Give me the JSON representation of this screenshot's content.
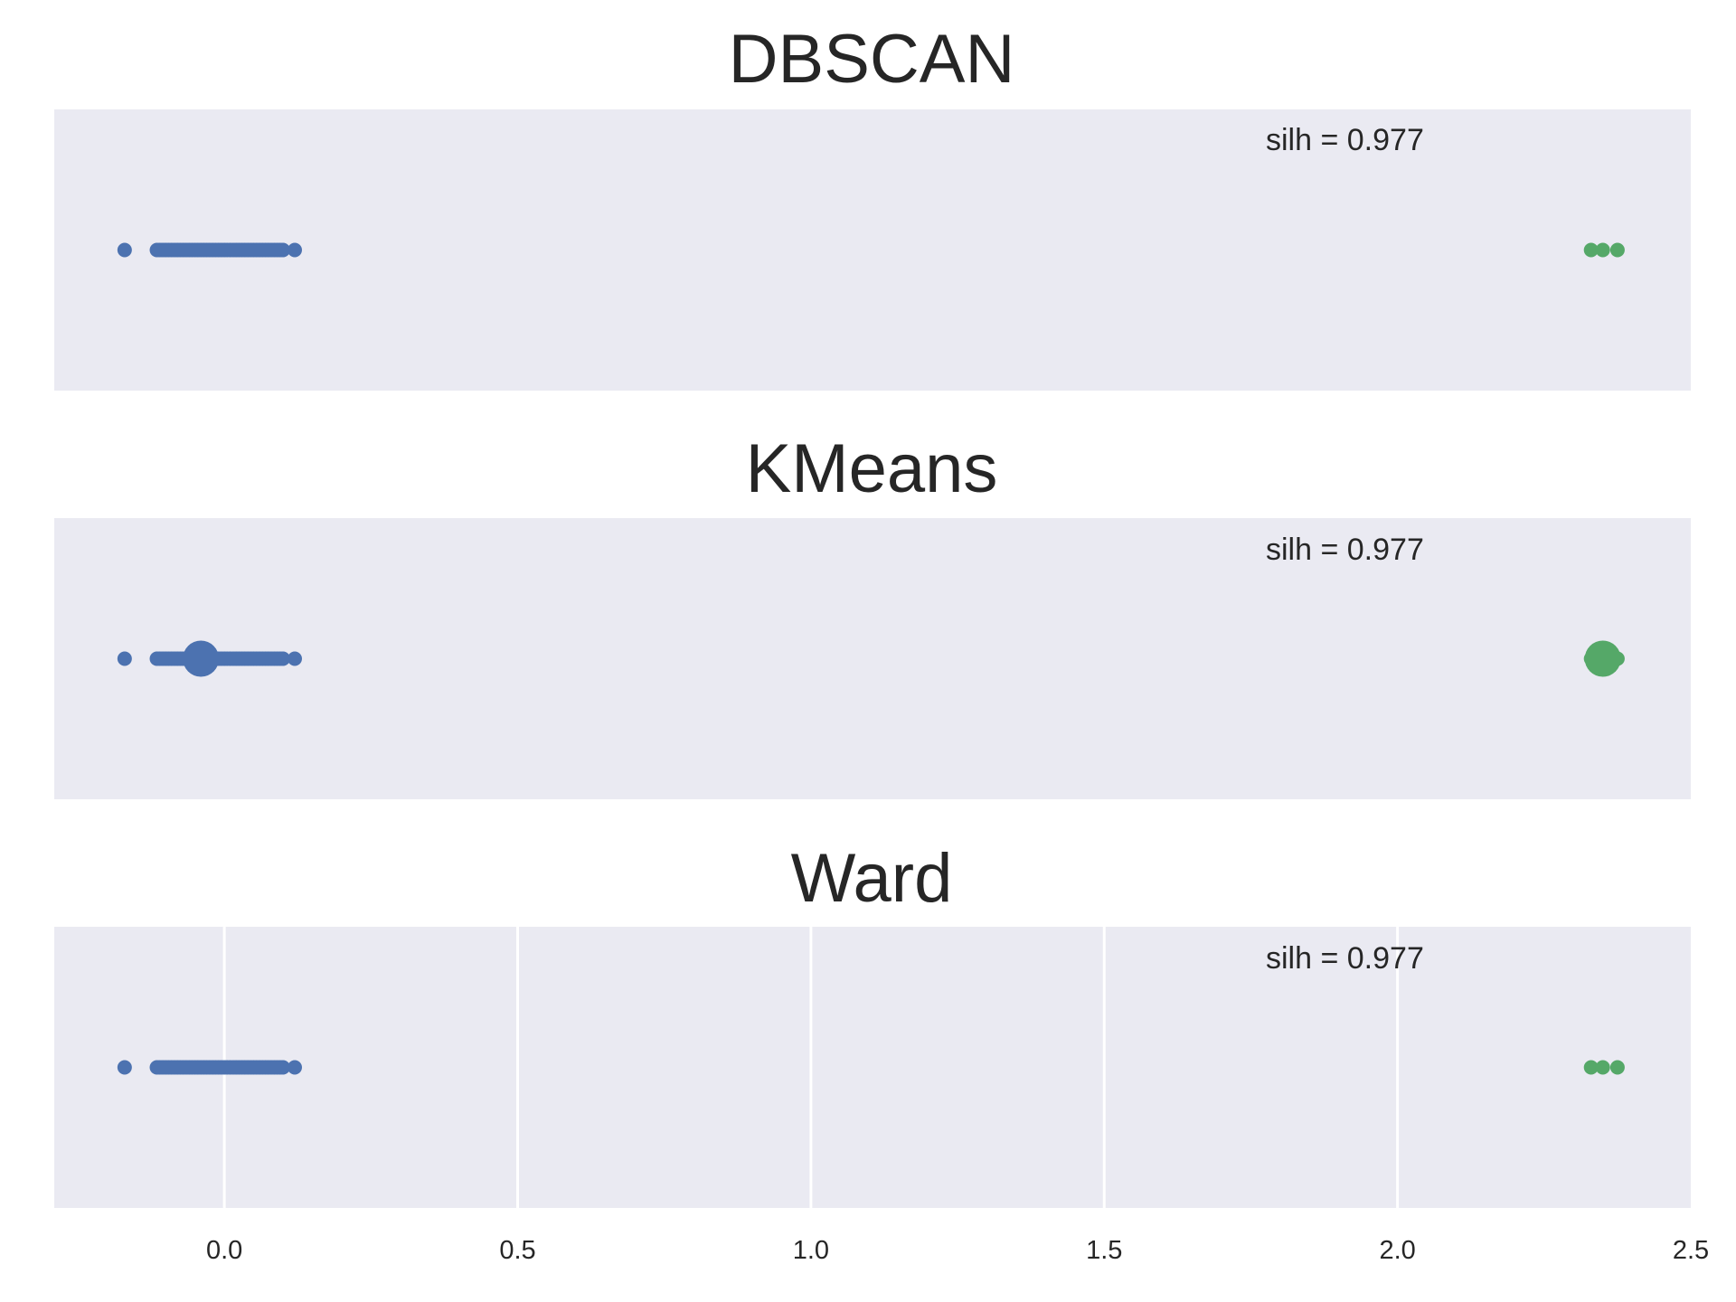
{
  "figure": {
    "background": "#ffffff",
    "axes_facecolor": "#eaeaf2",
    "grid_color": "#ffffff",
    "text_color": "#262626"
  },
  "chart_data": [
    {
      "type": "scatter",
      "title": "DBSCAN",
      "annotation": "silh = 0.977",
      "xlim": [
        -0.29,
        2.5
      ],
      "ylim": [
        -1,
        1
      ],
      "grid": false,
      "show_xticks": false,
      "series": [
        {
          "color": "#4c72b0",
          "size": 8,
          "x": [
            -0.17,
            -0.115,
            -0.11,
            -0.105,
            -0.1,
            -0.095,
            -0.09,
            -0.085,
            -0.08,
            -0.075,
            -0.07,
            -0.065,
            -0.06,
            -0.055,
            -0.05,
            -0.045,
            -0.04,
            -0.035,
            -0.03,
            -0.025,
            -0.02,
            -0.015,
            -0.01,
            -0.005,
            0.0,
            0.005,
            0.01,
            0.015,
            0.02,
            0.025,
            0.03,
            0.035,
            0.04,
            0.045,
            0.05,
            0.055,
            0.06,
            0.065,
            0.07,
            0.075,
            0.08,
            0.085,
            0.09,
            0.095,
            0.1,
            0.12
          ]
        },
        {
          "color": "#55a868",
          "size": 8,
          "x": [
            2.33,
            2.35,
            2.375
          ]
        }
      ]
    },
    {
      "type": "scatter",
      "title": "KMeans",
      "annotation": "silh = 0.977",
      "xlim": [
        -0.29,
        2.5
      ],
      "ylim": [
        -1,
        1
      ],
      "grid": false,
      "show_xticks": false,
      "series": [
        {
          "color": "#4c72b0",
          "size": 8,
          "x": [
            -0.17,
            -0.115,
            -0.11,
            -0.105,
            -0.1,
            -0.095,
            -0.09,
            -0.085,
            -0.08,
            -0.075,
            -0.07,
            -0.065,
            -0.06,
            -0.055,
            -0.05,
            -0.045,
            -0.04,
            -0.035,
            -0.03,
            -0.025,
            -0.02,
            -0.015,
            -0.01,
            -0.005,
            0.0,
            0.005,
            0.01,
            0.015,
            0.02,
            0.025,
            0.03,
            0.035,
            0.04,
            0.045,
            0.05,
            0.055,
            0.06,
            0.065,
            0.07,
            0.075,
            0.08,
            0.085,
            0.09,
            0.095,
            0.1,
            0.12
          ]
        },
        {
          "color": "#55a868",
          "size": 8,
          "x": [
            2.33,
            2.35,
            2.375
          ]
        },
        {
          "color": "#4c72b0",
          "size": 20,
          "x": [
            -0.04
          ]
        },
        {
          "color": "#55a868",
          "size": 20,
          "x": [
            2.35
          ]
        }
      ]
    },
    {
      "type": "scatter",
      "title": "Ward",
      "annotation": "silh = 0.977",
      "xlim": [
        -0.29,
        2.5
      ],
      "ylim": [
        -1,
        1
      ],
      "grid": true,
      "show_xticks": true,
      "xticks": [
        0.0,
        0.5,
        1.0,
        1.5,
        2.0,
        2.5
      ],
      "xtick_labels": [
        "0.0",
        "0.5",
        "1.0",
        "1.5",
        "2.0",
        "2.5"
      ],
      "series": [
        {
          "color": "#4c72b0",
          "size": 8,
          "x": [
            -0.17,
            -0.115,
            -0.11,
            -0.105,
            -0.1,
            -0.095,
            -0.09,
            -0.085,
            -0.08,
            -0.075,
            -0.07,
            -0.065,
            -0.06,
            -0.055,
            -0.05,
            -0.045,
            -0.04,
            -0.035,
            -0.03,
            -0.025,
            -0.02,
            -0.015,
            -0.01,
            -0.005,
            0.0,
            0.005,
            0.01,
            0.015,
            0.02,
            0.025,
            0.03,
            0.035,
            0.04,
            0.045,
            0.05,
            0.055,
            0.06,
            0.065,
            0.07,
            0.075,
            0.08,
            0.085,
            0.09,
            0.095,
            0.1,
            0.12
          ]
        },
        {
          "color": "#55a868",
          "size": 8,
          "x": [
            2.33,
            2.35,
            2.375
          ]
        }
      ]
    }
  ]
}
